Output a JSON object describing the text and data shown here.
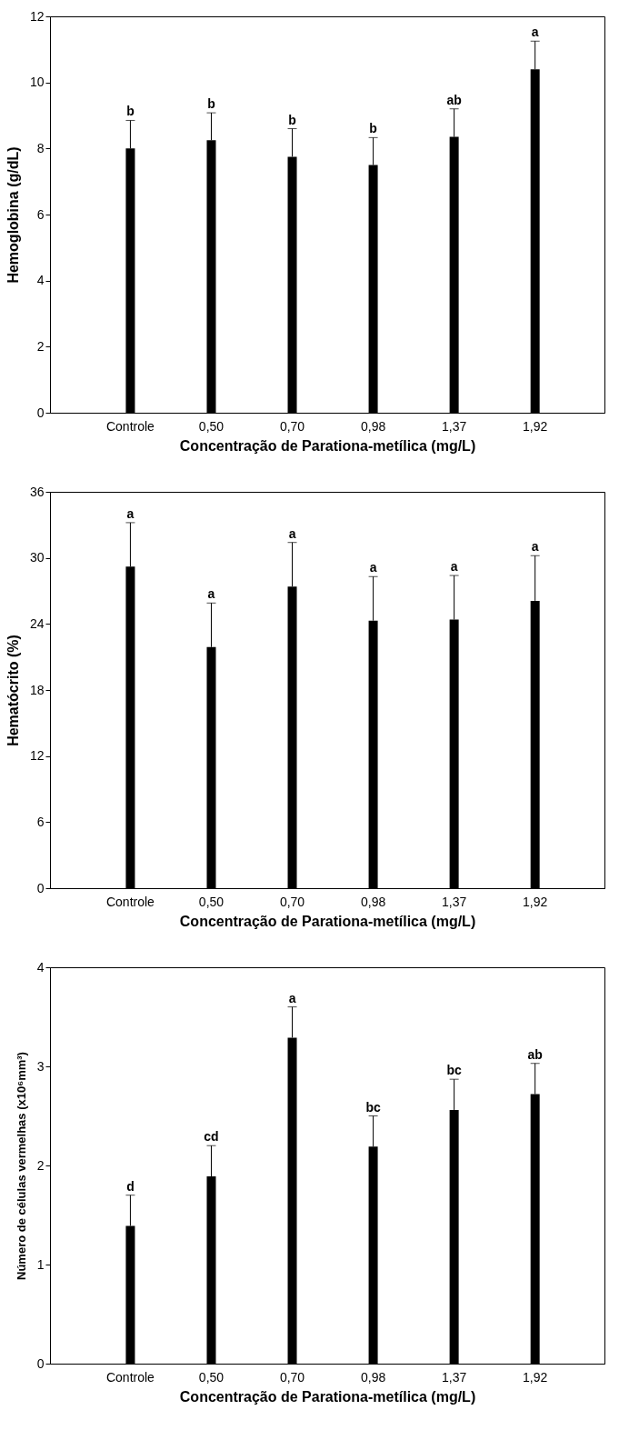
{
  "chart_data": [
    {
      "type": "bar",
      "categories": [
        "Controle",
        "0,50",
        "0,70",
        "0,98",
        "1,37",
        "1,92"
      ],
      "values": [
        8.0,
        8.25,
        7.75,
        7.5,
        8.35,
        10.4
      ],
      "color": "#000000",
      "errors": [
        [
          8.0,
          8.85
        ],
        [
          8.25,
          9.08
        ],
        [
          7.75,
          8.6
        ],
        [
          7.5,
          8.33
        ],
        [
          8.35,
          9.2
        ],
        [
          10.4,
          11.25
        ]
      ],
      "xlabel": "Concentração de Parationa-metílica (mg/L)",
      "ylabel": "Hemoglobina (g/dL)",
      "ylim": [
        0,
        12
      ],
      "yticks": [
        0,
        2,
        4,
        6,
        8,
        10,
        12
      ],
      "grid": false,
      "annotations": [
        "b",
        "b",
        "b",
        "b",
        "ab",
        "a"
      ]
    },
    {
      "type": "bar",
      "categories": [
        "Controle",
        "0,50",
        "0,70",
        "0,98",
        "1,37",
        "1,92"
      ],
      "values": [
        29.2,
        21.9,
        27.4,
        24.3,
        24.4,
        26.1
      ],
      "color": "#000000",
      "errors": [
        [
          29.2,
          33.2
        ],
        [
          21.9,
          25.9
        ],
        [
          27.4,
          31.4
        ],
        [
          24.3,
          28.3
        ],
        [
          24.4,
          28.4
        ],
        [
          26.1,
          30.2
        ]
      ],
      "xlabel": "Concentração de Parationa-metílica (mg/L)",
      "ylabel": "Hematócrito (%)",
      "ylim": [
        0,
        36
      ],
      "yticks": [
        0,
        6,
        12,
        18,
        24,
        30,
        36
      ],
      "grid": false,
      "annotations": [
        "a",
        "a",
        "a",
        "a",
        "a",
        "a"
      ]
    },
    {
      "type": "bar",
      "categories": [
        "Controle",
        "0,50",
        "0,70",
        "0,98",
        "1,37",
        "1,92"
      ],
      "values": [
        1.39,
        1.89,
        3.29,
        2.19,
        2.56,
        2.72
      ],
      "color": "#000000",
      "errors": [
        [
          1.39,
          1.7
        ],
        [
          1.89,
          2.2
        ],
        [
          3.29,
          3.6
        ],
        [
          2.19,
          2.5
        ],
        [
          2.56,
          2.87
        ],
        [
          2.72,
          3.03
        ]
      ],
      "xlabel": "Concentração de Parationa-metílica (mg/L)",
      "ylabel": "Número de células vermelhas (x10⁶mm³)",
      "ylim": [
        0,
        4
      ],
      "yticks": [
        0,
        1,
        2,
        3,
        4
      ],
      "grid": false,
      "annotations": [
        "d",
        "cd",
        "a",
        "bc",
        "bc",
        "ab"
      ]
    }
  ]
}
